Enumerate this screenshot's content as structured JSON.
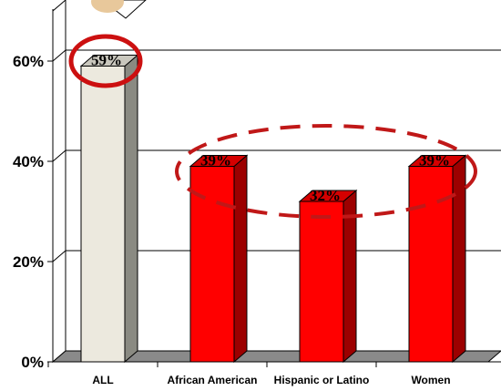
{
  "chart_data": {
    "type": "bar",
    "categories": [
      "ALL",
      "African American",
      "Hispanic or Latino",
      "Women"
    ],
    "values": [
      59,
      39,
      32,
      39
    ],
    "data_labels": [
      "59%",
      "39%",
      "32%",
      "39%"
    ],
    "y_ticks": [
      "0%",
      "20%",
      "40%",
      "60%"
    ],
    "ylim": [
      0,
      70
    ],
    "grid": true,
    "colors": {
      "all_bar": "#ece9de",
      "group_bar": "#ff0000",
      "highlight_ring": "#cc1010",
      "dashed_ellipse": "#c01818"
    }
  }
}
